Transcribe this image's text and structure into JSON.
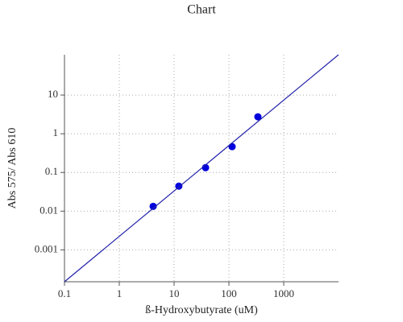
{
  "chart_data": {
    "type": "scatter",
    "title": "Chart",
    "x_label": "ß-Hydroxybutyrate (uM)",
    "y_label": "Abs 575/ Abs 610",
    "xscale": "log",
    "yscale": "log",
    "grid": true,
    "xlim": [
      0.1,
      10000
    ],
    "xticks": [
      0.1,
      1,
      10,
      100,
      1000
    ],
    "ylim": [
      0.00015,
      110
    ],
    "yticks": [
      0.001,
      0.01,
      0.1,
      1,
      10
    ],
    "series": [
      {
        "mode": "markers",
        "color": "#0000dd",
        "x": [
          4.15,
          12.2,
          37.5,
          114.5,
          338
        ],
        "values": [
          0.0133,
          0.0443,
          0.133,
          0.464,
          2.74
        ]
      },
      {
        "mode": "line",
        "color": "#2222aa",
        "x": [
          0.1,
          10000
        ],
        "values": [
          0.00015,
          110
        ]
      }
    ]
  }
}
